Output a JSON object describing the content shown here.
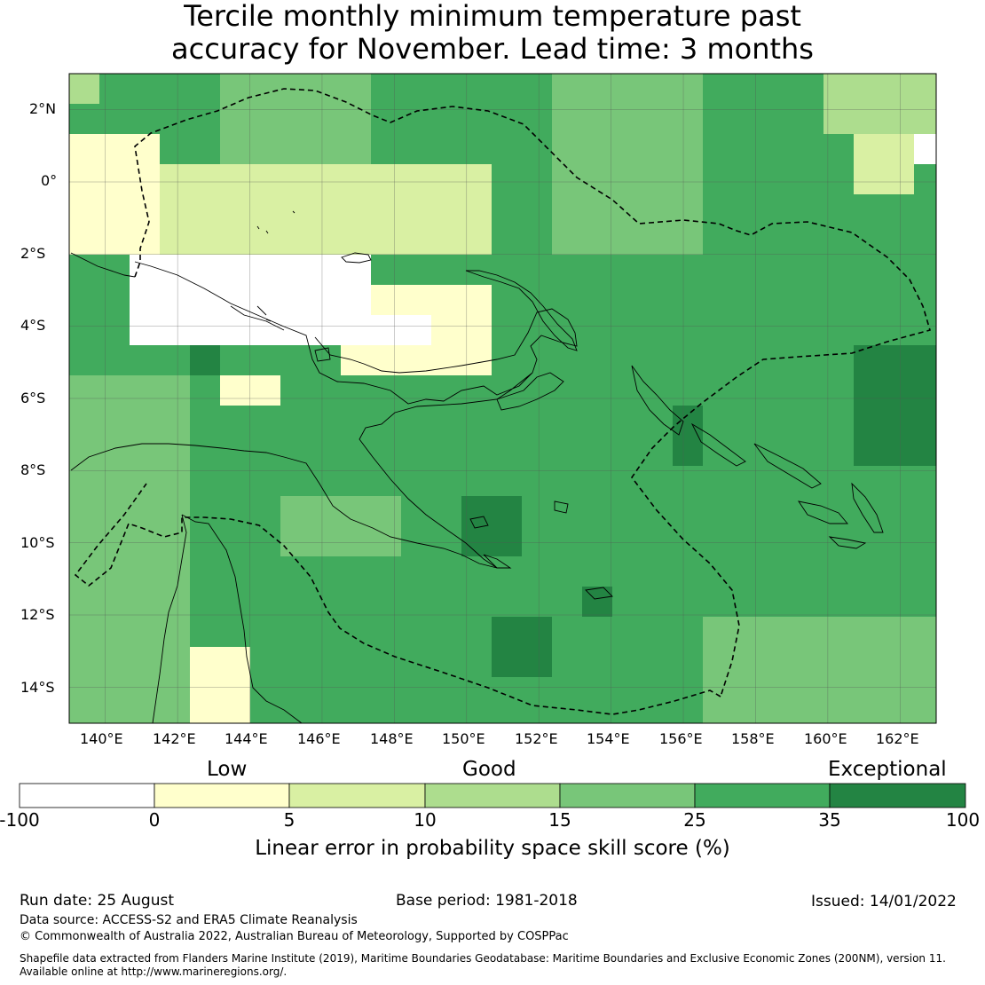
{
  "title": {
    "line1": "Tercile monthly minimum temperature past",
    "line2": "accuracy for November. Lead time: 3 months"
  },
  "map": {
    "lon_labels": [
      "140°E",
      "142°E",
      "144°E",
      "146°E",
      "148°E",
      "150°E",
      "152°E",
      "154°E",
      "156°E",
      "158°E",
      "160°E",
      "162°E"
    ],
    "lat_labels": [
      "2°N",
      "0°",
      "2°S",
      "4°S",
      "6°S",
      "8°S",
      "10°S",
      "12°S",
      "14°S"
    ],
    "lon_range": [
      139,
      163
    ],
    "lat_range": [
      -15,
      3
    ],
    "grid_resolution_deg": 0.8333,
    "ocean_base_color": "#41ab5d",
    "gridline_color": "#555555"
  },
  "colorbar": {
    "categories": [
      "Low",
      "Good",
      "Exceptional"
    ],
    "ticks": [
      "-100",
      "0",
      "5",
      "10",
      "15",
      "25",
      "35",
      "100"
    ],
    "colors": [
      "#ffffff",
      "#ffffcc",
      "#d9f0a3",
      "#addd8e",
      "#78c679",
      "#41ab5d",
      "#238443"
    ],
    "label": "Linear error in probability space skill score (%)"
  },
  "footer": {
    "run_date": "Run date: 25 August",
    "base_period": "Base period: 1981-2018",
    "issued": "Issued: 14/01/2022",
    "data_source": "Data source: ACCESS-S2 and ERA5 Climate Reanalysis",
    "copyright": "© Commonwealth of Australia 2022, Australian Bureau of Meteorology, Supported by COSPPac",
    "shapefile_line1": "Shapefile data extracted from Flanders Marine Institute (2019), Maritime Boundaries Geodatabase: Maritime Boundaries and Exclusive Economic Zones (200NM), version 11.",
    "shapefile_line2": "Available online at http://www.marineregions.org/."
  }
}
